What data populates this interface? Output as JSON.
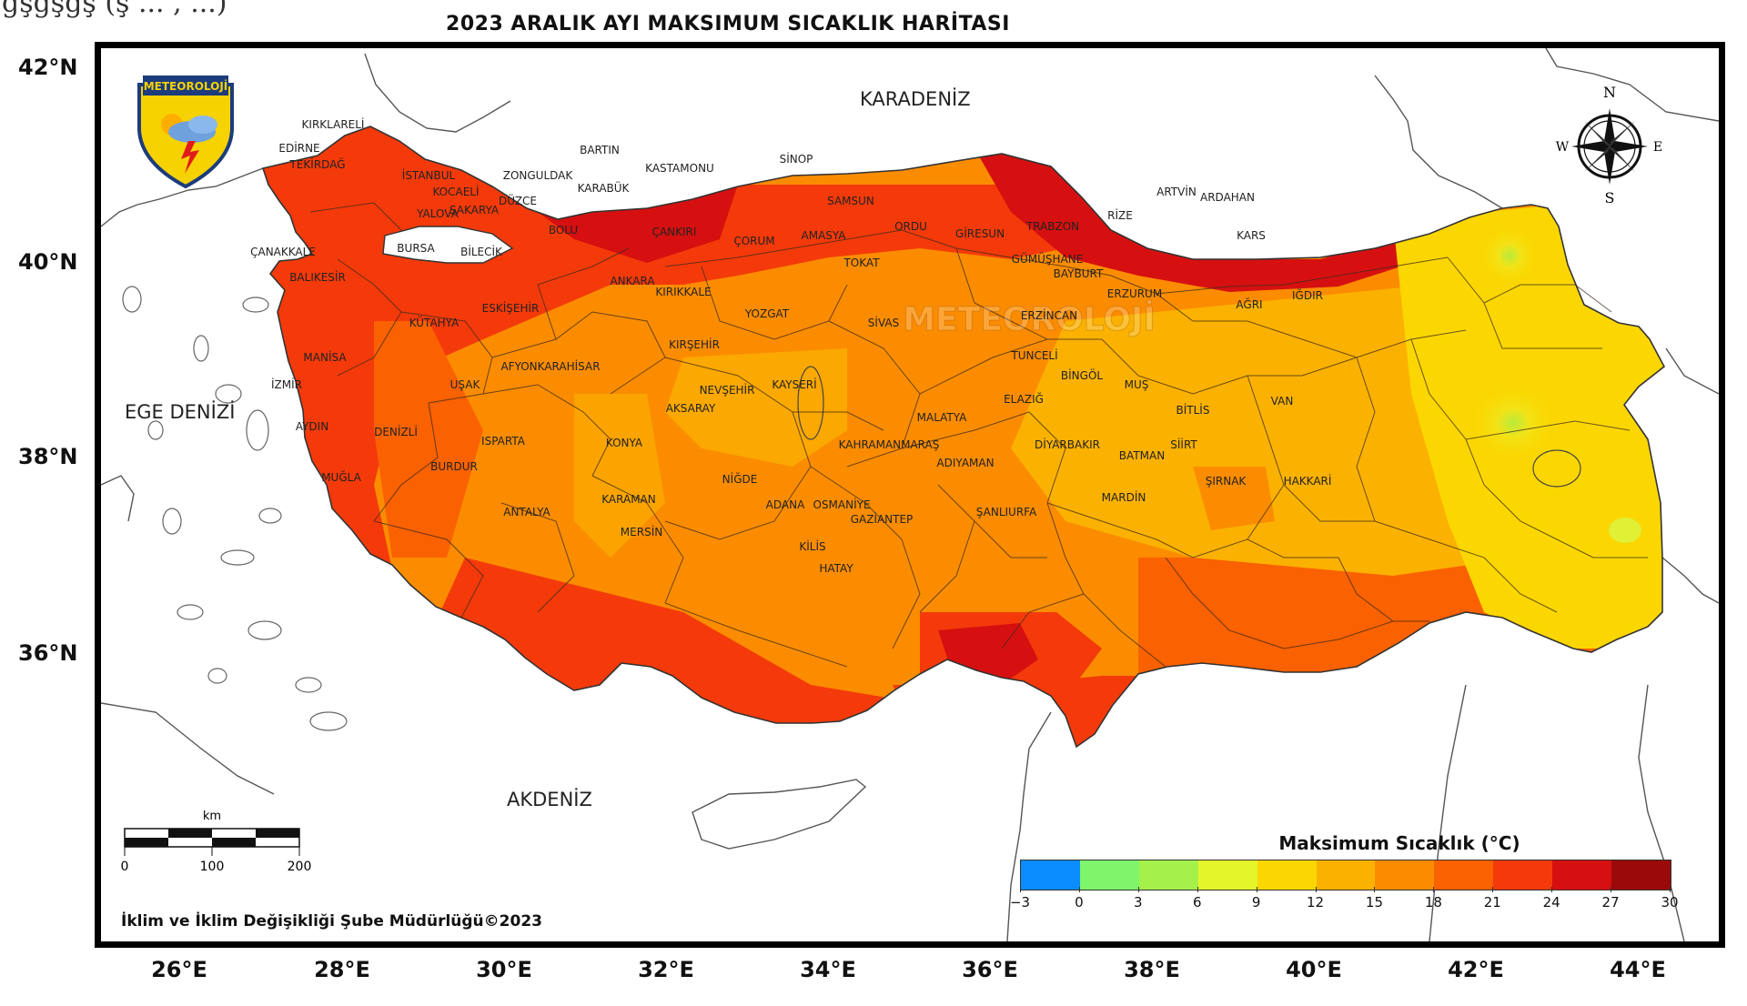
{
  "header_fragment": "ğşğşğş  (ş ...  , ...)",
  "title": "2023 ARALIK AYI MAKSIMUM SICAKLIK HARİTASI",
  "latitude_labels": [
    "42°N",
    "40°N",
    "38°N",
    "36°N"
  ],
  "longitude_labels": [
    "26°E",
    "28°E",
    "30°E",
    "32°E",
    "34°E",
    "36°E",
    "38°E",
    "40°E",
    "42°E",
    "44°E"
  ],
  "seas": {
    "north": "KARADENİZ",
    "west": "EGE DENİZİ",
    "south": "AKDENİZ"
  },
  "logo": {
    "text": "METEOROLOJİ",
    "icon": "meteoroloji-shield-logo"
  },
  "watermark": "METEOROLOJİ",
  "compass": {
    "n": "N",
    "s": "S",
    "e": "E",
    "w": "W",
    "icon": "compass-rose-icon"
  },
  "scale": {
    "unit": "km",
    "ticks": [
      "0",
      "100",
      "200"
    ]
  },
  "footer": "İklim ve İklim Değişikliği Şube Müdürlüğü©2023",
  "legend": {
    "title": "Maksimum Sıcaklık (°C)",
    "ticks": [
      "−3",
      "0",
      "3",
      "6",
      "9",
      "12",
      "15",
      "18",
      "21",
      "24",
      "27",
      "30"
    ],
    "colors": [
      "#0a8cff",
      "#7ef56b",
      "#a6f04c",
      "#e4f52a",
      "#fbd600",
      "#fbb100",
      "#fb8c00",
      "#fa6100",
      "#f43a0a",
      "#d61010",
      "#9b0a0a"
    ]
  },
  "provinces": [
    "KIRKLARELİ",
    "EDİRNE",
    "TEKİRDAĞ",
    "İSTANBUL",
    "KOCAELİ",
    "YALOVA",
    "SAKARYA",
    "DÜZCE",
    "ZONGULDAK",
    "BARTIN",
    "KARABÜK",
    "KASTAMONU",
    "SİNOP",
    "SAMSUN",
    "ORDU",
    "GİRESUN",
    "TRABZON",
    "RİZE",
    "ARTVİN",
    "ARDAHAN",
    "KARS",
    "IĞDIR",
    "AĞRI",
    "ERZURUM",
    "BAYBURT",
    "GÜMÜŞHANE",
    "ERZİNCAN",
    "TUNCELİ",
    "BİNGÖL",
    "MUŞ",
    "BİTLİS",
    "VAN",
    "HAKKARİ",
    "ŞIRNAK",
    "SİİRT",
    "BATMAN",
    "DİYARBAKIR",
    "MARDİN",
    "ŞANLIURFA",
    "ADIYAMAN",
    "MALATYA",
    "ELAZIĞ",
    "SİVAS",
    "TOKAT",
    "AMASYA",
    "ÇORUM",
    "YOZGAT",
    "KIRIKKALE",
    "ANKARA",
    "ÇANKIRI",
    "BOLU",
    "BİLECİK",
    "BURSA",
    "ÇANAKKALE",
    "BALIKESİR",
    "KÜTAHYA",
    "ESKİŞEHİR",
    "MANİSA",
    "İZMİR",
    "UŞAK",
    "AFYONKARAHİSAR",
    "AYDIN",
    "DENİZLİ",
    "MUĞLA",
    "BURDUR",
    "ISPARTA",
    "ANTALYA",
    "KONYA",
    "KARAMAN",
    "MERSİN",
    "ADANA",
    "OSMANİYE",
    "HATAY",
    "KİLİS",
    "GAZİANTEP",
    "KAHRAMANMARAŞ",
    "KAYSERİ",
    "NİĞDE",
    "AKSARAY",
    "NEVŞEHİR",
    "KIRŞEHİR"
  ]
}
